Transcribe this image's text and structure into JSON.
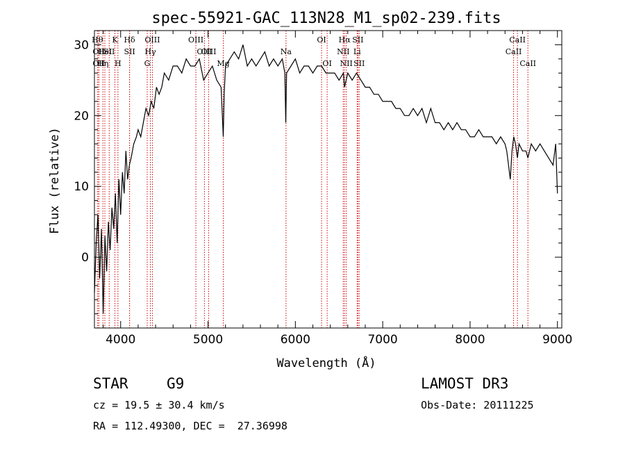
{
  "chart_data": {
    "type": "line",
    "title": "spec-55921-GAC_113N28_M1_sp02-239.fits",
    "xlabel": "Wavelength (Å)",
    "ylabel": "Flux (relative)",
    "xlim": [
      3700,
      9050
    ],
    "ylim": [
      -10,
      32
    ],
    "xticks": [
      4000,
      5000,
      6000,
      7000,
      8000,
      9000
    ],
    "yticks": [
      0,
      10,
      20,
      30
    ],
    "series": [
      {
        "name": "spectrum",
        "x": [
          3700,
          3720,
          3740,
          3760,
          3780,
          3800,
          3820,
          3840,
          3860,
          3880,
          3900,
          3920,
          3940,
          3960,
          3980,
          4000,
          4020,
          4040,
          4060,
          4080,
          4100,
          4120,
          4150,
          4180,
          4200,
          4230,
          4260,
          4290,
          4320,
          4350,
          4380,
          4410,
          4440,
          4470,
          4500,
          4550,
          4600,
          4650,
          4700,
          4750,
          4800,
          4850,
          4900,
          4950,
          5000,
          5050,
          5100,
          5150,
          5175,
          5185,
          5200,
          5250,
          5300,
          5350,
          5400,
          5450,
          5500,
          5550,
          5600,
          5650,
          5700,
          5750,
          5800,
          5850,
          5880,
          5890,
          5900,
          5950,
          6000,
          6050,
          6100,
          6150,
          6200,
          6250,
          6300,
          6350,
          6400,
          6450,
          6500,
          6550,
          6563,
          6600,
          6650,
          6700,
          6750,
          6800,
          6850,
          6900,
          6950,
          7000,
          7050,
          7100,
          7150,
          7200,
          7250,
          7300,
          7350,
          7400,
          7450,
          7500,
          7550,
          7600,
          7650,
          7700,
          7750,
          7800,
          7850,
          7900,
          7950,
          8000,
          8050,
          8100,
          8150,
          8200,
          8250,
          8300,
          8350,
          8400,
          8420,
          8440,
          8460,
          8480,
          8500,
          8520,
          8542,
          8560,
          8600,
          8640,
          8662,
          8700,
          8750,
          8800,
          8850,
          8900,
          8950,
          8980,
          9000
        ],
        "y": [
          -5,
          2,
          6,
          -3,
          4,
          -8,
          3,
          -2,
          5,
          1,
          7,
          4,
          9,
          2,
          11,
          6,
          12,
          9,
          15,
          11,
          13,
          14,
          16,
          17,
          18,
          17,
          19,
          21,
          20,
          22,
          21,
          24,
          23,
          24,
          26,
          25,
          27,
          27,
          26,
          28,
          27,
          27,
          28,
          25,
          26,
          27,
          25,
          24,
          17,
          23,
          27,
          28,
          29,
          28,
          30,
          27,
          28,
          27,
          28,
          29,
          27,
          28,
          27,
          28,
          26,
          19,
          26,
          27,
          28,
          26,
          27,
          27,
          26,
          27,
          27,
          26,
          26,
          26,
          25,
          26,
          24,
          26,
          25,
          26,
          25,
          24,
          24,
          23,
          23,
          22,
          22,
          22,
          21,
          21,
          20,
          20,
          21,
          20,
          21,
          19,
          21,
          19,
          19,
          18,
          19,
          18,
          19,
          18,
          18,
          17,
          17,
          18,
          17,
          17,
          17,
          16,
          17,
          16,
          15,
          13,
          11,
          15,
          17,
          16,
          14,
          16,
          15,
          15,
          14,
          16,
          15,
          16,
          15,
          14,
          13,
          16,
          9
        ]
      }
    ],
    "line_markers": [
      {
        "wl": 3734,
        "label": "Hθ",
        "row": 0
      },
      {
        "wl": 3750,
        "label": "OII",
        "row": 1
      },
      {
        "wl": 3750,
        "label": "OII",
        "row": 2
      },
      {
        "wl": 3797,
        "label": "Hη",
        "row": 2
      },
      {
        "wl": 3819,
        "label": "HeI",
        "row": 1
      },
      {
        "wl": 3869,
        "label": "SII",
        "row": 1
      },
      {
        "wl": 3934,
        "label": "K",
        "row": 0
      },
      {
        "wl": 3969,
        "label": "H",
        "row": 2
      },
      {
        "wl": 4102,
        "label": "Hδ",
        "row": 0
      },
      {
        "wl": 4102,
        "label": "SII",
        "row": 1
      },
      {
        "wl": 4304,
        "label": "G",
        "row": 2
      },
      {
        "wl": 4340,
        "label": "Hγ",
        "row": 1
      },
      {
        "wl": 4363,
        "label": "OIII",
        "row": 0
      },
      {
        "wl": 4861,
        "label": "OIII",
        "row": 0
      },
      {
        "wl": 4959,
        "label": "OIII",
        "row": 1
      },
      {
        "wl": 5007,
        "label": "OIII",
        "row": 1
      },
      {
        "wl": 5175,
        "label": "Mg",
        "row": 2
      },
      {
        "wl": 5893,
        "label": "Na",
        "row": 1
      },
      {
        "wl": 6300,
        "label": "OI",
        "row": 0
      },
      {
        "wl": 6364,
        "label": "OI",
        "row": 2
      },
      {
        "wl": 6548,
        "label": "NII",
        "row": 1
      },
      {
        "wl": 6563,
        "label": "Hα",
        "row": 0
      },
      {
        "wl": 6583,
        "label": "NII",
        "row": 2
      },
      {
        "wl": 6707,
        "label": "Li",
        "row": 1
      },
      {
        "wl": 6716,
        "label": "SII",
        "row": 0
      },
      {
        "wl": 6731,
        "label": "SII",
        "row": 2
      },
      {
        "wl": 8498,
        "label": "CaII",
        "row": 1
      },
      {
        "wl": 8542,
        "label": "CaII",
        "row": 0
      },
      {
        "wl": 8662,
        "label": "CaII",
        "row": 2
      }
    ],
    "marker_color": "#cc0000"
  },
  "info": {
    "class": "STAR",
    "subclass": "G9",
    "survey": "LAMOST DR3",
    "cz": "cz = 19.5 ± 30.4 km/s",
    "obs_date": "Obs-Date: 20111225",
    "radec": "RA = 112.49300, DEC =  27.36998"
  }
}
